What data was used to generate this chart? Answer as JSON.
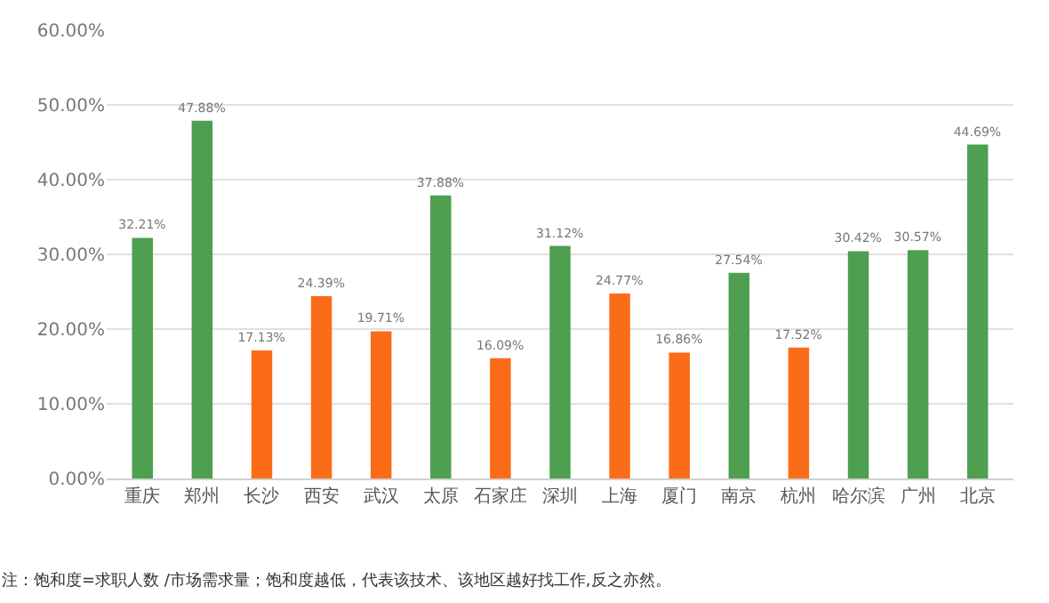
{
  "chart_data": {
    "type": "bar",
    "categories": [
      "重庆",
      "郑州",
      "长沙",
      "西安",
      "武汉",
      "太原",
      "石家庄",
      "深圳",
      "上海",
      "厦门",
      "南京",
      "杭州",
      "哈尔滨",
      "广州",
      "北京"
    ],
    "values": [
      32.21,
      47.88,
      17.13,
      24.39,
      19.71,
      37.88,
      16.09,
      31.12,
      24.77,
      16.86,
      27.54,
      17.52,
      30.42,
      30.57,
      44.69
    ],
    "colors": [
      "#4e9f50",
      "#4e9f50",
      "#fb6c18",
      "#fb6c18",
      "#fb6c18",
      "#4e9f50",
      "#fb6c18",
      "#4e9f50",
      "#fb6c18",
      "#fb6c18",
      "#4e9f50",
      "#fb6c18",
      "#4e9f50",
      "#4e9f50",
      "#4e9f50"
    ],
    "value_labels": [
      "32.21%",
      "47.88%",
      "17.13%",
      "24.39%",
      "19.71%",
      "37.88%",
      "16.09%",
      "31.12%",
      "24.77%",
      "16.86%",
      "27.54%",
      "17.52%",
      "30.42%",
      "30.57%",
      "44.69%"
    ],
    "ylim": [
      0,
      60
    ],
    "yticks": [
      {
        "value": 0,
        "label": "0.00%"
      },
      {
        "value": 10,
        "label": "10.00%"
      },
      {
        "value": 20,
        "label": "20.00%"
      },
      {
        "value": 30,
        "label": "30.00%"
      },
      {
        "value": 40,
        "label": "40.00%"
      },
      {
        "value": 50,
        "label": "50.00%"
      },
      {
        "value": 60,
        "label": "60.00%"
      }
    ],
    "grid": "y",
    "annotations": [
      "注：饱和度=求职人数 /市场需求量；饱和度越低，代表该技术、该地区越好找工作,反之亦然。"
    ]
  }
}
